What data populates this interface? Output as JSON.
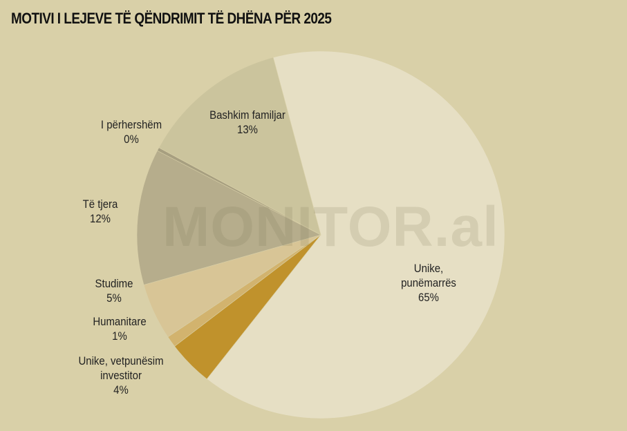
{
  "title": "MOTIVI I LEJEVE TË QËNDRIMIT TË DHËNA PËR 2025",
  "watermark": "MONITOR.al",
  "chart_data": {
    "type": "pie",
    "title": "MOTIVI I LEJEVE TË QËNDRIMIT TË DHËNA PËR 2025",
    "slices": [
      {
        "label": "Unike, punëmarrës",
        "label_lines": [
          "Unike,",
          "punëmarrës"
        ],
        "value": 65,
        "value_label": "65%",
        "color": "#e6dfc4"
      },
      {
        "label": "Unike, vetpunësim investitor",
        "label_lines": [
          "Unike, vetpunësim",
          "investitor"
        ],
        "value": 4,
        "value_label": "4%",
        "color": "#c0922c"
      },
      {
        "label": "Humanitare",
        "label_lines": [
          "Humanitare"
        ],
        "value": 1,
        "value_label": "1%",
        "color": "#d2b36e"
      },
      {
        "label": "Studime",
        "label_lines": [
          "Studime"
        ],
        "value": 5,
        "value_label": "5%",
        "color": "#d8c596"
      },
      {
        "label": "Të tjera",
        "label_lines": [
          "Të tjera"
        ],
        "value": 12,
        "value_label": "12%",
        "color": "#b6ad8c"
      },
      {
        "label": "I përhershëm",
        "label_lines": [
          "I përhershëm"
        ],
        "value": 0.3,
        "value_label": "0%",
        "color": "#a79f80"
      },
      {
        "label": "Bashkim familjar",
        "label_lines": [
          "Bashkim familjar"
        ],
        "value": 13,
        "value_label": "13%",
        "color": "#cbc49d"
      }
    ],
    "legend": "none"
  }
}
